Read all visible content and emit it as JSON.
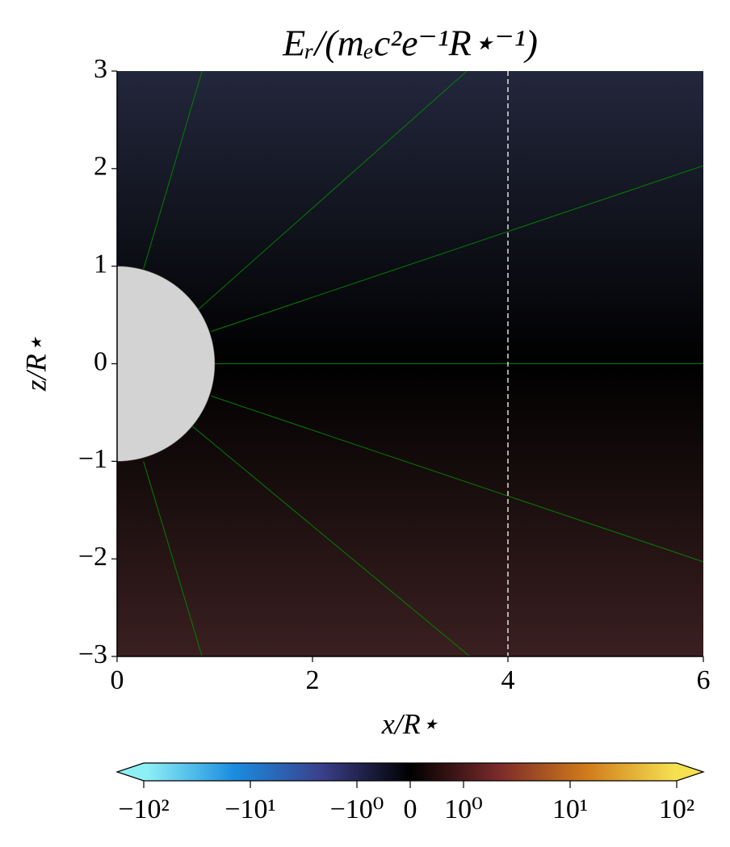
{
  "chart_data": {
    "type": "heatmap",
    "title": "Eᵣ/(mₑc²e⁻¹R⋆⁻¹)",
    "xlabel": "x/R⋆",
    "ylabel": "z/R⋆",
    "xlim": [
      0,
      6
    ],
    "ylim": [
      -3,
      3
    ],
    "xticks": [
      0,
      2,
      4,
      6
    ],
    "yticks": [
      {
        "value": -3,
        "label": "−3"
      },
      {
        "value": -2,
        "label": "−2"
      },
      {
        "value": -1,
        "label": "−1"
      },
      0,
      1,
      2,
      3
    ],
    "star": {
      "radius": 1,
      "color": "#d3d3d3"
    },
    "vline": {
      "x": 4,
      "color": "#ffffff"
    },
    "field_lines": {
      "color": "#008000",
      "lines": [
        {
          "x": [
            0.27,
            0.87
          ],
          "y": [
            0.97,
            3
          ]
        },
        {
          "x": [
            0.79,
            3.58
          ],
          "y": [
            0.52,
            3
          ]
        },
        {
          "x": [
            0.96,
            6
          ],
          "y": [
            0.33,
            2.03
          ]
        },
        {
          "x": [
            1,
            6
          ],
          "y": [
            0,
            0
          ]
        },
        {
          "x": [
            0.96,
            6
          ],
          "y": [
            -0.33,
            -2.03
          ]
        },
        {
          "x": [
            0.77,
            3.61
          ],
          "y": [
            -0.64,
            -3
          ]
        },
        {
          "x": [
            0.27,
            0.87
          ],
          "y": [
            -1,
            -3
          ]
        }
      ]
    },
    "colorbar": {
      "scale": "symlog",
      "linthresh": 1,
      "clim": [
        -100,
        100
      ],
      "colormap": [
        "#8ef0f5",
        "#1a8ce0",
        "#3b3f8a",
        "#000000",
        "#7a2a2a",
        "#d07a1a",
        "#f5e050"
      ],
      "ticks": [
        {
          "value": -100,
          "label": "−10²"
        },
        {
          "value": -10,
          "label": "−10¹"
        },
        {
          "value": -1,
          "label": "−10⁰"
        },
        0,
        {
          "value": 1,
          "label": "10⁰"
        },
        {
          "value": 10,
          "label": "10¹"
        },
        {
          "value": 100,
          "label": "10²"
        }
      ]
    }
  }
}
